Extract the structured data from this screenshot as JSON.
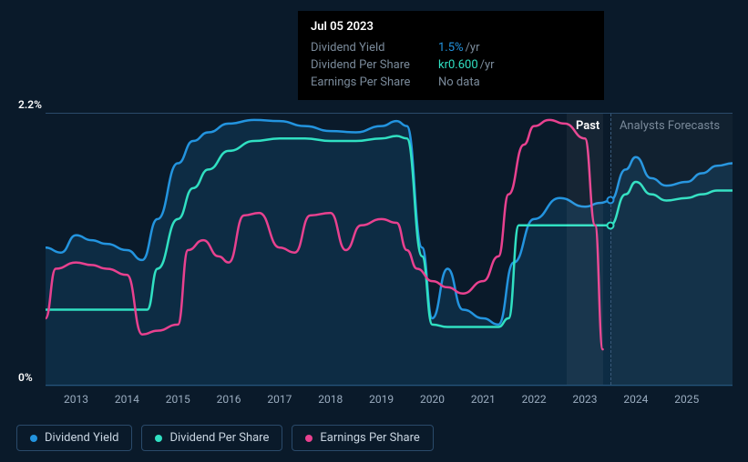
{
  "tooltip": {
    "date": "Jul 05 2023",
    "rows": [
      {
        "label": "Dividend Yield",
        "value": "1.5%",
        "unit": "/yr",
        "value_color": "#2394df"
      },
      {
        "label": "Dividend Per Share",
        "value": "kr0.600",
        "unit": "/yr",
        "value_color": "#30e0c2"
      },
      {
        "label": "Earnings Per Share",
        "value": "No data",
        "unit": "",
        "value_color": "#7a8a9a"
      }
    ]
  },
  "chart": {
    "type": "line",
    "background_color": "#0a1a2a",
    "grid_color": "#2a4a6a",
    "ylim": [
      0,
      2.2
    ],
    "y_ticks": [
      {
        "v": 2.2,
        "label": "2.2%"
      },
      {
        "v": 0,
        "label": "0%"
      }
    ],
    "x_years": [
      2013,
      2014,
      2015,
      2016,
      2017,
      2018,
      2019,
      2020,
      2021,
      2022,
      2023,
      2024,
      2025
    ],
    "x_range": [
      2012.4,
      2025.9
    ],
    "past_forecast_split": 2023.5,
    "labels": {
      "past": "Past",
      "forecast": "Analysts Forecasts"
    },
    "series": [
      {
        "name": "Dividend Yield",
        "color": "#2394df",
        "area_fill": "rgba(35,148,223,0.15)",
        "line_width": 2.5,
        "points": [
          [
            2012.4,
            1.12
          ],
          [
            2012.7,
            1.08
          ],
          [
            2013.0,
            1.22
          ],
          [
            2013.3,
            1.18
          ],
          [
            2013.6,
            1.15
          ],
          [
            2014.0,
            1.1
          ],
          [
            2014.3,
            1.02
          ],
          [
            2014.6,
            1.35
          ],
          [
            2015.0,
            1.8
          ],
          [
            2015.3,
            1.98
          ],
          [
            2015.6,
            2.05
          ],
          [
            2016.0,
            2.12
          ],
          [
            2016.5,
            2.15
          ],
          [
            2017.0,
            2.14
          ],
          [
            2017.5,
            2.1
          ],
          [
            2018.0,
            2.06
          ],
          [
            2018.5,
            2.05
          ],
          [
            2019.0,
            2.1
          ],
          [
            2019.3,
            2.14
          ],
          [
            2019.5,
            2.1
          ],
          [
            2019.8,
            1.12
          ],
          [
            2020.0,
            0.55
          ],
          [
            2020.3,
            0.95
          ],
          [
            2020.6,
            0.62
          ],
          [
            2021.0,
            0.55
          ],
          [
            2021.3,
            0.5
          ],
          [
            2021.6,
            1.0
          ],
          [
            2022.0,
            1.35
          ],
          [
            2022.5,
            1.52
          ],
          [
            2023.0,
            1.45
          ],
          [
            2023.3,
            1.48
          ],
          [
            2023.5,
            1.5
          ],
          [
            2023.8,
            1.75
          ],
          [
            2024.0,
            1.85
          ],
          [
            2024.3,
            1.68
          ],
          [
            2024.6,
            1.62
          ],
          [
            2025.0,
            1.65
          ],
          [
            2025.3,
            1.72
          ],
          [
            2025.6,
            1.78
          ],
          [
            2025.9,
            1.8
          ]
        ],
        "marker_at": [
          2023.5,
          1.5
        ]
      },
      {
        "name": "Dividend Per Share",
        "color": "#30e0c2",
        "area_fill": null,
        "line_width": 2.5,
        "points": [
          [
            2012.4,
            0.62
          ],
          [
            2013.0,
            0.62
          ],
          [
            2013.5,
            0.62
          ],
          [
            2014.0,
            0.62
          ],
          [
            2014.4,
            0.62
          ],
          [
            2014.6,
            0.95
          ],
          [
            2015.0,
            1.35
          ],
          [
            2015.3,
            1.6
          ],
          [
            2015.6,
            1.75
          ],
          [
            2016.0,
            1.9
          ],
          [
            2016.5,
            1.98
          ],
          [
            2017.0,
            2.0
          ],
          [
            2017.5,
            2.0
          ],
          [
            2018.0,
            1.98
          ],
          [
            2018.5,
            1.98
          ],
          [
            2019.0,
            2.0
          ],
          [
            2019.3,
            2.02
          ],
          [
            2019.5,
            2.0
          ],
          [
            2019.8,
            1.05
          ],
          [
            2020.0,
            0.5
          ],
          [
            2020.3,
            0.48
          ],
          [
            2020.6,
            0.48
          ],
          [
            2021.0,
            0.48
          ],
          [
            2021.3,
            0.48
          ],
          [
            2021.5,
            0.55
          ],
          [
            2021.7,
            1.3
          ],
          [
            2022.0,
            1.3
          ],
          [
            2022.5,
            1.3
          ],
          [
            2023.0,
            1.3
          ],
          [
            2023.5,
            1.3
          ],
          [
            2023.8,
            1.55
          ],
          [
            2024.0,
            1.65
          ],
          [
            2024.3,
            1.55
          ],
          [
            2024.6,
            1.5
          ],
          [
            2025.0,
            1.52
          ],
          [
            2025.3,
            1.55
          ],
          [
            2025.6,
            1.58
          ],
          [
            2025.9,
            1.58
          ]
        ],
        "marker_at": [
          2023.5,
          1.3
        ]
      },
      {
        "name": "Earnings Per Share",
        "color": "#e8418f",
        "area_fill": null,
        "line_width": 2.5,
        "points": [
          [
            2012.4,
            0.55
          ],
          [
            2012.6,
            0.95
          ],
          [
            2013.0,
            1.0
          ],
          [
            2013.3,
            0.98
          ],
          [
            2013.6,
            0.95
          ],
          [
            2014.0,
            0.9
          ],
          [
            2014.3,
            0.42
          ],
          [
            2014.6,
            0.45
          ],
          [
            2015.0,
            0.5
          ],
          [
            2015.2,
            1.1
          ],
          [
            2015.5,
            1.18
          ],
          [
            2015.8,
            1.05
          ],
          [
            2016.0,
            1.0
          ],
          [
            2016.3,
            1.38
          ],
          [
            2016.6,
            1.4
          ],
          [
            2017.0,
            1.12
          ],
          [
            2017.3,
            1.08
          ],
          [
            2017.6,
            1.38
          ],
          [
            2018.0,
            1.4
          ],
          [
            2018.3,
            1.1
          ],
          [
            2018.6,
            1.3
          ],
          [
            2019.0,
            1.35
          ],
          [
            2019.3,
            1.32
          ],
          [
            2019.5,
            1.1
          ],
          [
            2019.7,
            0.95
          ],
          [
            2020.0,
            0.85
          ],
          [
            2020.3,
            0.8
          ],
          [
            2020.6,
            0.75
          ],
          [
            2021.0,
            0.85
          ],
          [
            2021.3,
            1.05
          ],
          [
            2021.5,
            1.55
          ],
          [
            2021.8,
            1.95
          ],
          [
            2022.0,
            2.1
          ],
          [
            2022.3,
            2.15
          ],
          [
            2022.6,
            2.12
          ],
          [
            2023.0,
            2.0
          ],
          [
            2023.2,
            1.3
          ],
          [
            2023.35,
            0.3
          ]
        ],
        "marker_at": null
      }
    ],
    "hover_x": 2023.0,
    "hover_width_years": 0.7
  },
  "legend": [
    {
      "label": "Dividend Yield",
      "color": "#2394df"
    },
    {
      "label": "Dividend Per Share",
      "color": "#30e0c2"
    },
    {
      "label": "Earnings Per Share",
      "color": "#e8418f"
    }
  ]
}
